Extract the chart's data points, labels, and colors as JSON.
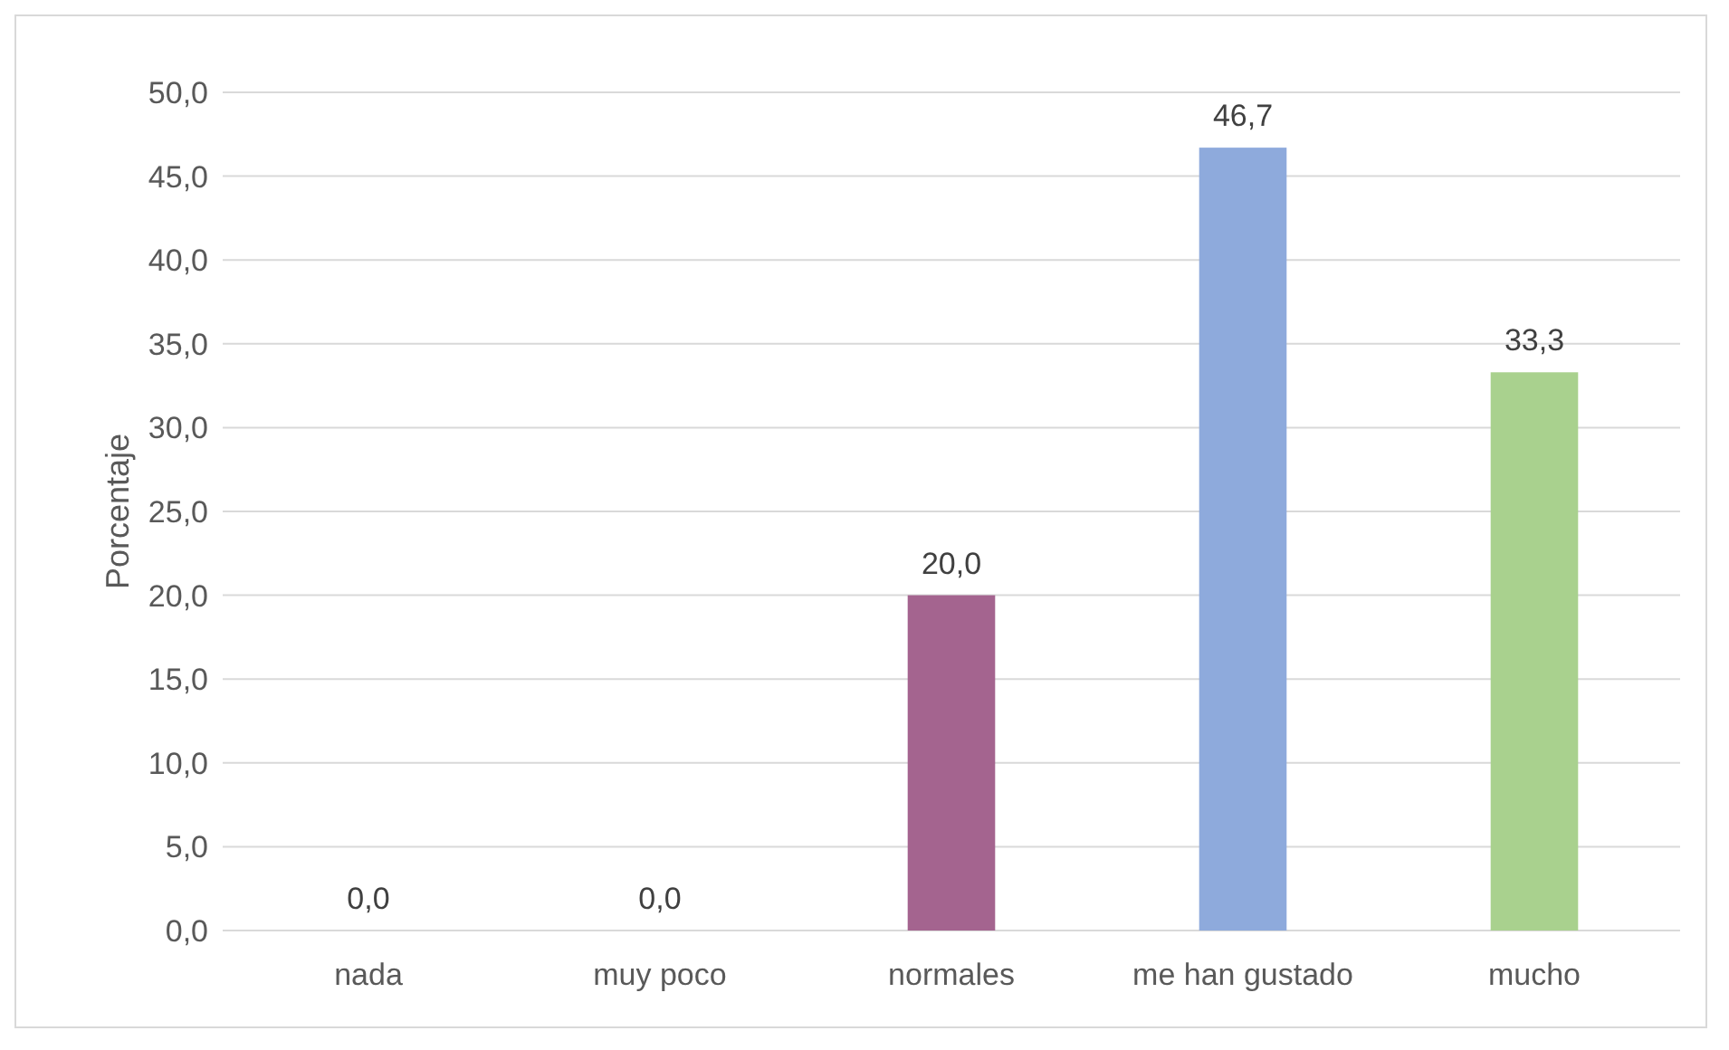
{
  "chart_data": {
    "type": "bar",
    "ylabel": "Porcentaje",
    "categories": [
      "nada",
      "muy poco",
      "normales",
      "me han gustado",
      "mucho"
    ],
    "values": [
      0,
      0,
      20,
      46.7,
      33.3
    ],
    "value_labels": [
      "0,0",
      "0,0",
      "20,0",
      "46,7",
      "33,3"
    ],
    "colors": [
      "#4472c4",
      "#ed7d31",
      "#a4648f",
      "#8eaadc",
      "#a9d18e"
    ],
    "ylim": [
      0,
      50
    ],
    "yticks": [
      {
        "value": 0,
        "label": "0,0"
      },
      {
        "value": 5,
        "label": "5,0"
      },
      {
        "value": 10,
        "label": "10,0"
      },
      {
        "value": 15,
        "label": "15,0"
      },
      {
        "value": 20,
        "label": "20,0"
      },
      {
        "value": 25,
        "label": "25,0"
      },
      {
        "value": 30,
        "label": "30,0"
      },
      {
        "value": 35,
        "label": "35,0"
      },
      {
        "value": 40,
        "label": "40,0"
      },
      {
        "value": 45,
        "label": "45,0"
      },
      {
        "value": 50,
        "label": "50,0"
      }
    ],
    "grid": "y"
  }
}
